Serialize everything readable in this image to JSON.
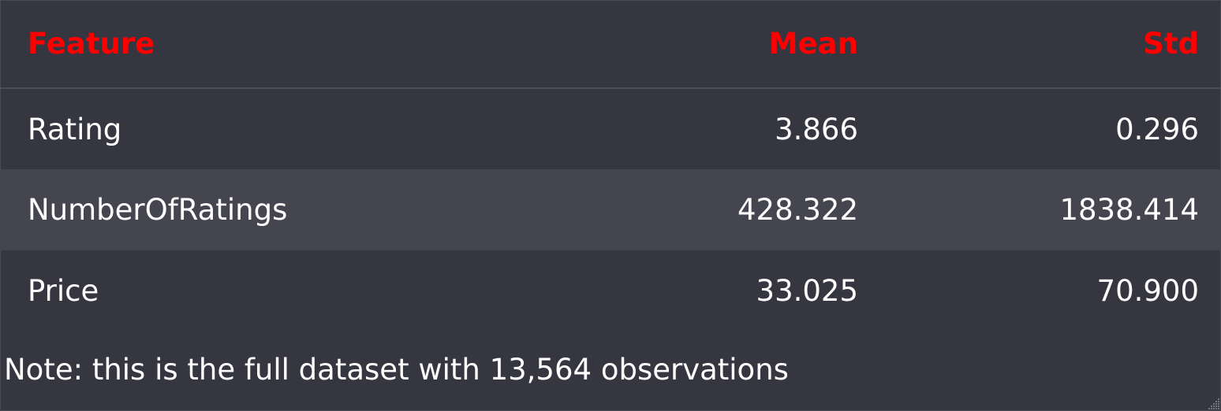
{
  "table": {
    "headers": [
      "Feature",
      "Mean",
      "Std"
    ],
    "rows": [
      {
        "feature": "Rating",
        "mean": "3.866",
        "std": "0.296"
      },
      {
        "feature": "NumberOfRatings",
        "mean": "428.322",
        "std": "1838.414"
      },
      {
        "feature": "Price",
        "mean": "33.025",
        "std": "70.900"
      }
    ]
  },
  "note": "Note: this is the full dataset with 13,564 observations",
  "colors": {
    "background": "#363640",
    "alt_row": "#45454f",
    "header_text": "#ff0000",
    "body_text": "#ffffff"
  }
}
